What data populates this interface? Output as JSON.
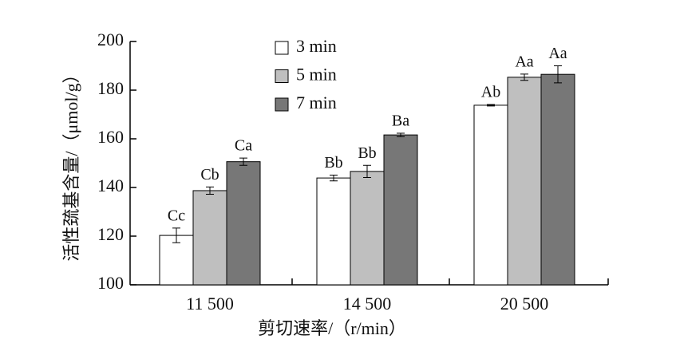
{
  "chart_data": {
    "type": "bar",
    "categories": [
      "11 500",
      "14 500",
      "20 500"
    ],
    "x_label": "剪切速率/（r/min）",
    "y_label": "活性巯基含量/（μmol/g）",
    "ylim": [
      100,
      200
    ],
    "yticks": [
      100,
      120,
      140,
      160,
      180,
      200
    ],
    "legend": "top-left",
    "series": [
      {
        "name": "3 min",
        "color": "#ffffff",
        "values": [
          120.3,
          143.9,
          173.8
        ],
        "errors": [
          3,
          1.2,
          0.3
        ],
        "letters": [
          "Cc",
          "Bb",
          "Ab"
        ]
      },
      {
        "name": "5 min",
        "color": "#bfbfbf",
        "values": [
          138.7,
          146.6,
          185.3
        ],
        "errors": [
          1.5,
          2.5,
          1.3
        ],
        "letters": [
          "Cb",
          "Bb",
          "Aa"
        ]
      },
      {
        "name": "7 min",
        "color": "#777777",
        "values": [
          150.6,
          161.6,
          186.5
        ],
        "errors": [
          1.5,
          0.7,
          3.5
        ],
        "letters": [
          "Ca",
          "Ba",
          "Aa"
        ]
      }
    ]
  }
}
